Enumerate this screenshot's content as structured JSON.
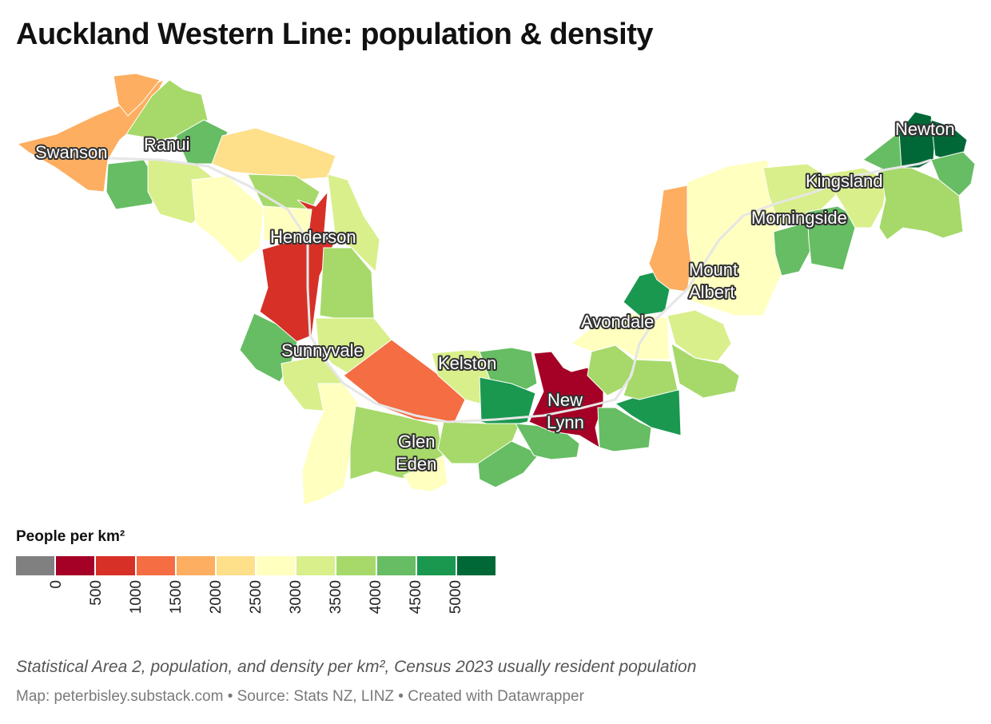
{
  "title": "Auckland Western Line: population & density",
  "legend": {
    "title": "People per km²",
    "ticks": [
      "0",
      "500",
      "1000",
      "1500",
      "2000",
      "2500",
      "3000",
      "3500",
      "4000",
      "4500",
      "5000"
    ],
    "colors": [
      "#808080",
      "#a50026",
      "#d73027",
      "#f46d43",
      "#fdae61",
      "#fee08b",
      "#ffffbf",
      "#d9ef8b",
      "#a6d96a",
      "#66bd63",
      "#1a9850",
      "#006837"
    ]
  },
  "stations": [
    "Swanson",
    "Ranui",
    "Henderson",
    "Sunnyvale",
    "Kelston",
    "Glen Eden",
    "New Lynn",
    "Avondale",
    "Mount Albert",
    "Morningside",
    "Kingsland",
    "Newton"
  ],
  "labels": {
    "swanson": "Swanson",
    "ranui": "Ranui",
    "henderson": "Henderson",
    "sunnyvale": "Sunnyvale",
    "kelston": "Kelston",
    "glen_1": "Glen",
    "glen_2": "Eden",
    "newlynn_1": "New",
    "newlynn_2": "Lynn",
    "avondale": "Avondale",
    "mtalbert_1": "Mount",
    "mtalbert_2": "Albert",
    "morningside": "Morningside",
    "kingsland": "Kingsland",
    "newton": "Newton"
  },
  "caption": "Statistical Area 2, population, and density per km², Census 2023 usually resident population",
  "footer": "Map: peterbisley.substack.com • Source: Stats NZ, LINZ • Created with Datawrapper"
}
